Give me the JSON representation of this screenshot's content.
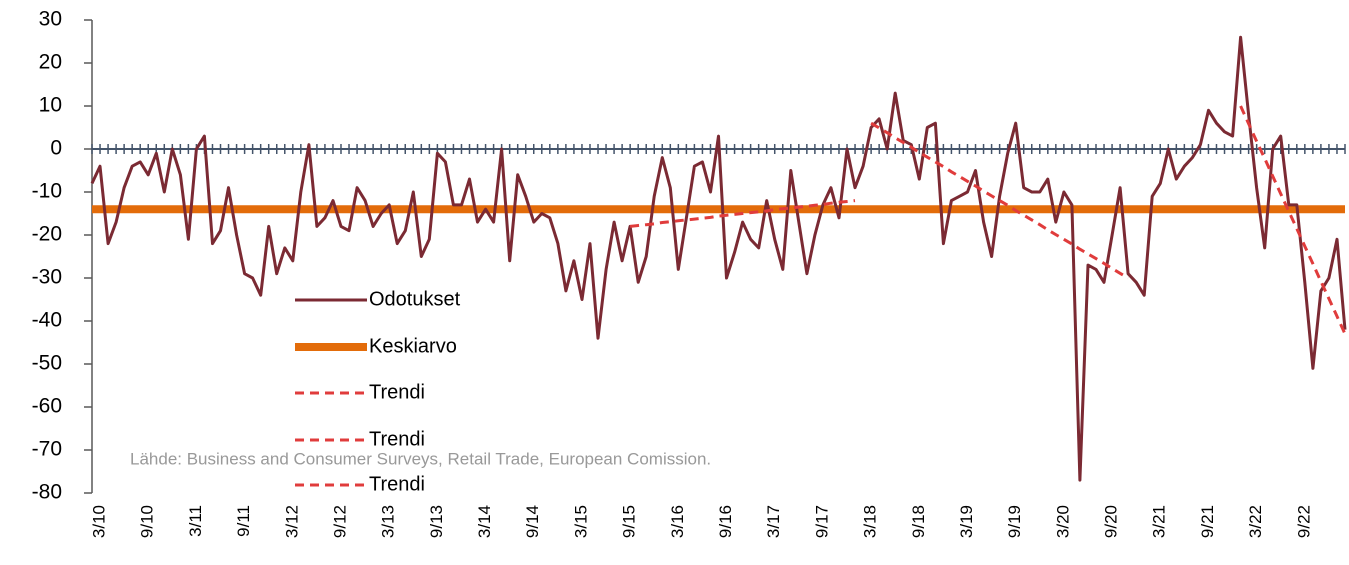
{
  "chart_data": {
    "type": "line",
    "categories": [
      null,
      "3/10",
      null,
      null,
      null,
      null,
      null,
      "9/10",
      null,
      null,
      null,
      null,
      null,
      "3/11",
      null,
      null,
      null,
      null,
      null,
      "9/11",
      null,
      null,
      null,
      null,
      null,
      "3/12",
      null,
      null,
      null,
      null,
      null,
      "9/12",
      null,
      null,
      null,
      null,
      null,
      "3/13",
      null,
      null,
      null,
      null,
      null,
      "9/13",
      null,
      null,
      null,
      null,
      null,
      "3/14",
      null,
      null,
      null,
      null,
      null,
      "9/14",
      null,
      null,
      null,
      null,
      null,
      "3/15",
      null,
      null,
      null,
      null,
      null,
      "9/15",
      null,
      null,
      null,
      null,
      null,
      "3/16",
      null,
      null,
      null,
      null,
      null,
      "9/16",
      null,
      null,
      null,
      null,
      null,
      "3/17",
      null,
      null,
      null,
      null,
      null,
      "9/17",
      null,
      null,
      null,
      null,
      null,
      "3/18",
      null,
      null,
      null,
      null,
      null,
      "9/18",
      null,
      null,
      null,
      null,
      null,
      "3/19",
      null,
      null,
      null,
      null,
      null,
      "9/19",
      null,
      null,
      null,
      null,
      null,
      "3/20",
      null,
      null,
      null,
      null,
      null,
      "9/20",
      null,
      null,
      null,
      null,
      null,
      "3/21",
      null,
      null,
      null,
      null,
      null,
      "9/21",
      null,
      null,
      null,
      null,
      null,
      "3/22",
      null,
      null,
      null,
      null,
      null,
      "9/22",
      null,
      null,
      null,
      null,
      null
    ],
    "series": [
      {
        "name": "Odotukset",
        "color": "#7b2a33",
        "values": [
          -8,
          -4,
          -22,
          -17,
          -9,
          -4,
          -3,
          -6,
          -1,
          -10,
          0,
          -6,
          -21,
          0,
          3,
          -22,
          -19,
          -9,
          -20,
          -29,
          -30,
          -34,
          -18,
          -29,
          -23,
          -26,
          -10,
          1,
          -18,
          -16,
          -12,
          -18,
          -19,
          -9,
          -12,
          -18,
          -15,
          -13,
          -22,
          -19,
          -10,
          -25,
          -21,
          -1,
          -3,
          -13,
          -13,
          -7,
          -17,
          -14,
          -17,
          0,
          -26,
          -6,
          -11,
          -17,
          -15,
          -16,
          -22,
          -33,
          -26,
          -35,
          -22,
          -44,
          -28,
          -17,
          -26,
          -18,
          -31,
          -25,
          -11,
          -2,
          -9,
          -28,
          -16,
          -4,
          -3,
          -10,
          3,
          -30,
          -24,
          -17,
          -21,
          -23,
          -12,
          -21,
          -28,
          -5,
          -17,
          -29,
          -20,
          -13,
          -9,
          -16,
          0,
          -9,
          -4,
          5,
          7,
          0,
          13,
          2,
          1,
          -7,
          5,
          6,
          -22,
          -12,
          -11,
          -10,
          -5,
          -17,
          -25,
          -11,
          -1,
          6,
          -9,
          -10,
          -10,
          -7,
          -17,
          -10,
          -13,
          -77,
          -27,
          -28,
          -31,
          -20,
          -9,
          -29,
          -31,
          -34,
          -11,
          -8,
          0,
          -7,
          -4,
          -2,
          1,
          9,
          6,
          4,
          3,
          26,
          8,
          -9,
          -23,
          0,
          3,
          -13,
          -13,
          -31,
          -51,
          -33,
          -30,
          -21,
          -42
        ]
      },
      {
        "name": "Trendi",
        "color": "#e03c3c",
        "values": [
          null,
          null,
          null,
          null,
          null,
          null,
          null,
          null,
          null,
          null,
          null,
          null,
          null,
          null,
          null,
          null,
          null,
          null,
          null,
          null,
          null,
          null,
          null,
          null,
          null,
          null,
          null,
          null,
          null,
          null,
          null,
          null,
          null,
          null,
          null,
          null,
          null,
          null,
          null,
          null,
          null,
          null,
          null,
          null,
          null,
          null,
          null,
          null,
          null,
          null,
          null,
          null,
          null,
          null,
          null,
          null,
          null,
          null,
          null,
          null,
          null,
          null,
          null,
          null,
          null,
          null,
          null,
          -18,
          -17.8,
          -17.6,
          -17.4,
          -17.1,
          -16.9,
          -16.7,
          -16.5,
          -16.3,
          -16.1,
          -15.9,
          -15.6,
          -15.4,
          -15.2,
          -15,
          -14.8,
          -14.6,
          -14.4,
          -14.1,
          -13.9,
          -13.7,
          -13.5,
          -13.3,
          -13.1,
          -12.9,
          -12.6,
          -12.4,
          -12.2,
          -12,
          null,
          null,
          null,
          null,
          null,
          null,
          null,
          null,
          null,
          null,
          null,
          null,
          null,
          null,
          null,
          null,
          null,
          null,
          null,
          null,
          null,
          null,
          null,
          null,
          null,
          null,
          null,
          null,
          null,
          null,
          null,
          null,
          null,
          null,
          null,
          null,
          null,
          null,
          null,
          null,
          null,
          null,
          null,
          null,
          null,
          null,
          null,
          null,
          null,
          null,
          null,
          null,
          null,
          null,
          null,
          null,
          null,
          null,
          null,
          null,
          null
        ]
      },
      {
        "name": "Trendi",
        "color": "#e03c3c",
        "values": [
          null,
          null,
          null,
          null,
          null,
          null,
          null,
          null,
          null,
          null,
          null,
          null,
          null,
          null,
          null,
          null,
          null,
          null,
          null,
          null,
          null,
          null,
          null,
          null,
          null,
          null,
          null,
          null,
          null,
          null,
          null,
          null,
          null,
          null,
          null,
          null,
          null,
          null,
          null,
          null,
          null,
          null,
          null,
          null,
          null,
          null,
          null,
          null,
          null,
          null,
          null,
          null,
          null,
          null,
          null,
          null,
          null,
          null,
          null,
          null,
          null,
          null,
          null,
          null,
          null,
          null,
          null,
          null,
          null,
          null,
          null,
          null,
          null,
          null,
          null,
          null,
          null,
          null,
          null,
          null,
          null,
          null,
          null,
          null,
          null,
          null,
          null,
          null,
          null,
          null,
          null,
          null,
          null,
          null,
          null,
          null,
          null,
          6,
          4.9,
          3.8,
          2.6,
          1.5,
          0.4,
          -0.8,
          -1.9,
          -3,
          -4.1,
          -5.3,
          -6.4,
          -7.5,
          -8.6,
          -9.8,
          -10.9,
          -12,
          -13.1,
          -14.3,
          -15.4,
          -16.5,
          -17.6,
          -18.8,
          -19.9,
          -21,
          -22.1,
          -23.3,
          -24.4,
          -25.5,
          -26.6,
          -27.8,
          -28.9,
          -30,
          null,
          null,
          null,
          null,
          null,
          null,
          null,
          null,
          null,
          null,
          null,
          null,
          null,
          null,
          null,
          null,
          null,
          null,
          null,
          null,
          null,
          null,
          null,
          null,
          null,
          null,
          null
        ]
      },
      {
        "name": "Trendi",
        "color": "#e03c3c",
        "values": [
          null,
          null,
          null,
          null,
          null,
          null,
          null,
          null,
          null,
          null,
          null,
          null,
          null,
          null,
          null,
          null,
          null,
          null,
          null,
          null,
          null,
          null,
          null,
          null,
          null,
          null,
          null,
          null,
          null,
          null,
          null,
          null,
          null,
          null,
          null,
          null,
          null,
          null,
          null,
          null,
          null,
          null,
          null,
          null,
          null,
          null,
          null,
          null,
          null,
          null,
          null,
          null,
          null,
          null,
          null,
          null,
          null,
          null,
          null,
          null,
          null,
          null,
          null,
          null,
          null,
          null,
          null,
          null,
          null,
          null,
          null,
          null,
          null,
          null,
          null,
          null,
          null,
          null,
          null,
          null,
          null,
          null,
          null,
          null,
          null,
          null,
          null,
          null,
          null,
          null,
          null,
          null,
          null,
          null,
          null,
          null,
          null,
          null,
          null,
          null,
          null,
          null,
          null,
          null,
          null,
          null,
          null,
          null,
          null,
          null,
          null,
          null,
          null,
          null,
          null,
          null,
          null,
          null,
          null,
          null,
          null,
          null,
          null,
          null,
          null,
          null,
          null,
          null,
          null,
          null,
          null,
          null,
          null,
          null,
          null,
          null,
          null,
          null,
          null,
          null,
          null,
          null,
          null,
          10,
          5.9,
          1.8,
          -2.2,
          -6.3,
          -10.4,
          -14.5,
          -18.5,
          -22.6,
          -26.7,
          -30.8,
          -34.8,
          -38.9,
          -43
        ]
      }
    ],
    "reference_line": {
      "name": "Keskiarvo",
      "value": -14,
      "color": "#e36c0a"
    },
    "zero_line_color": "#44546a",
    "ylim": [
      -80,
      30
    ],
    "yticks": [
      30,
      20,
      10,
      0,
      -10,
      -20,
      -30,
      -40,
      -50,
      -60,
      -70,
      -80
    ],
    "source": "Lähde: Business and Consumer Surveys, Retail Trade, European Comission."
  }
}
